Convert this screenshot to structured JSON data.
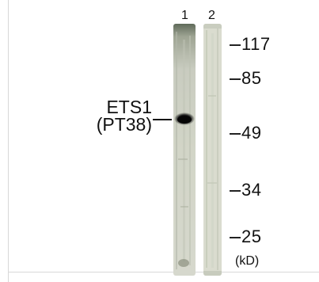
{
  "lanes": [
    {
      "number": "1"
    },
    {
      "number": "2"
    }
  ],
  "protein_label": {
    "line1": "ETS1",
    "line2": "(PT38)"
  },
  "markers": [
    "117",
    "85",
    "49",
    "34",
    "25"
  ],
  "unit": "(kD)"
}
